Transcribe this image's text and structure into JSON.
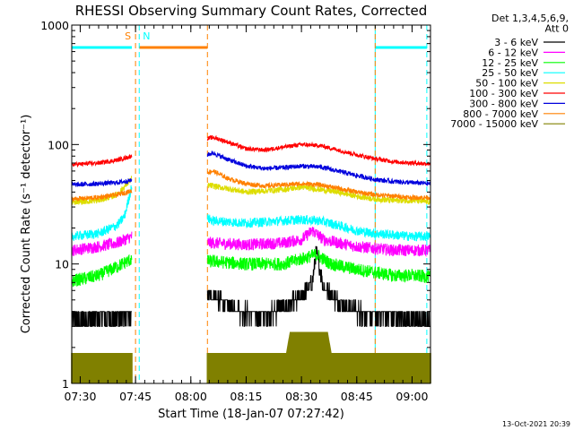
{
  "chart_data": {
    "type": "line",
    "title": "RHESSI Observing Summary Count Rates, Corrected",
    "xlabel": "Start Time (18-Jan-07 07:27:42)",
    "ylabel": "Corrected Count Rate (s⁻¹ detector⁻¹)",
    "y_scale": "log",
    "ylim": [
      1,
      1000
    ],
    "y_ticks": [
      1,
      10,
      100,
      1000
    ],
    "y_tick_labels": [
      "1",
      "10",
      "100",
      "1000"
    ],
    "xlim": [
      "07:27:42",
      "09:05:00"
    ],
    "x_ticks": [
      "07:30",
      "07:45",
      "08:00",
      "08:15",
      "08:30",
      "08:45",
      "09:00"
    ],
    "x_tick_labels": [
      "07:30",
      "07:45",
      "08:00",
      "08:15",
      "08:30",
      "08:45",
      "09:00"
    ],
    "legend": {
      "placement": "right",
      "header": [
        "Det 1,3,4,5,6,9,",
        "Att 0"
      ]
    },
    "data_gap": [
      "07:46:00",
      "08:04:30"
    ],
    "series": [
      {
        "name": "3 - 6 keV",
        "color": "#000000",
        "x": [
          "07:27:42",
          "07:35",
          "07:40",
          "07:44",
          "08:06",
          "08:10",
          "08:15",
          "08:20",
          "08:25",
          "08:30",
          "08:33",
          "08:34",
          "08:36",
          "08:40",
          "08:45",
          "08:50",
          "08:55",
          "09:00",
          "09:05"
        ],
        "y": [
          3.4,
          3.5,
          3.6,
          3.7,
          5.5,
          4.3,
          3.9,
          3.8,
          4.2,
          5.2,
          7.0,
          13.0,
          6.5,
          4.8,
          4.0,
          3.7,
          3.6,
          3.5,
          3.4
        ]
      },
      {
        "name": "6 - 12 keV",
        "color": "#ff00ff",
        "x": [
          "07:27:42",
          "07:35",
          "07:40",
          "07:44",
          "08:06",
          "08:15",
          "08:25",
          "08:30",
          "08:33",
          "08:36",
          "08:40",
          "08:45",
          "08:50",
          "08:55",
          "09:00",
          "09:05"
        ],
        "y": [
          13,
          14,
          15,
          17,
          15,
          14.5,
          15,
          16,
          19,
          16,
          15,
          14,
          13.5,
          13,
          13,
          13
        ]
      },
      {
        "name": "12 - 25 keV",
        "color": "#00ff00",
        "x": [
          "07:27:42",
          "07:35",
          "07:40",
          "07:44",
          "08:06",
          "08:15",
          "08:25",
          "08:30",
          "08:34",
          "08:38",
          "08:45",
          "08:50",
          "08:55",
          "09:00",
          "09:05"
        ],
        "y": [
          7.2,
          8,
          9.5,
          11,
          10.5,
          10,
          10,
          11,
          12,
          10,
          9,
          8.5,
          8,
          8,
          7.8
        ]
      },
      {
        "name": "25 - 50 keV",
        "color": "#00ffff",
        "x": [
          "07:27:42",
          "07:35",
          "07:40",
          "07:42",
          "07:44",
          "08:06",
          "08:15",
          "08:25",
          "08:30",
          "08:35",
          "08:40",
          "08:45",
          "08:50",
          "08:55",
          "09:00",
          "09:05"
        ],
        "y": [
          17,
          18,
          21,
          25,
          45,
          23,
          22,
          23,
          23.5,
          23,
          21,
          19,
          18,
          17.5,
          17,
          17
        ]
      },
      {
        "name": "50 - 100 keV",
        "color": "#dddd00",
        "x": [
          "07:27:42",
          "07:35",
          "07:40",
          "07:44",
          "08:06",
          "08:15",
          "08:25",
          "08:30",
          "08:35",
          "08:40",
          "08:45",
          "08:50",
          "08:55",
          "09:00",
          "09:05"
        ],
        "y": [
          33,
          34,
          38,
          52,
          45,
          40,
          42,
          44,
          42,
          40,
          37,
          35,
          34,
          34,
          33
        ]
      },
      {
        "name": "100 - 300 keV",
        "color": "#ff0000",
        "x": [
          "07:27:42",
          "07:35",
          "07:40",
          "07:44",
          "08:06",
          "08:10",
          "08:15",
          "08:20",
          "08:25",
          "08:30",
          "08:35",
          "08:40",
          "08:45",
          "08:50",
          "08:55",
          "09:00",
          "09:05"
        ],
        "y": [
          68,
          70,
          74,
          80,
          115,
          105,
          92,
          90,
          95,
          100,
          98,
          90,
          82,
          76,
          72,
          70,
          69
        ]
      },
      {
        "name": "300 - 800 keV",
        "color": "#0000dd",
        "x": [
          "07:27:42",
          "07:35",
          "07:40",
          "07:44",
          "08:06",
          "08:10",
          "08:15",
          "08:20",
          "08:25",
          "08:30",
          "08:35",
          "08:40",
          "08:45",
          "08:50",
          "08:55",
          "09:00",
          "09:05"
        ],
        "y": [
          46,
          47,
          48,
          50,
          85,
          75,
          66,
          63,
          64,
          66,
          65,
          60,
          55,
          51,
          49,
          48,
          47
        ]
      },
      {
        "name": "800 - 7000 keV",
        "color": "#ff8000",
        "x": [
          "07:27:42",
          "07:35",
          "07:40",
          "07:44",
          "08:06",
          "08:10",
          "08:15",
          "08:20",
          "08:25",
          "08:30",
          "08:35",
          "08:40",
          "08:45",
          "08:50",
          "08:55",
          "09:00",
          "09:05"
        ],
        "y": [
          35,
          36,
          38,
          41,
          60,
          52,
          47,
          45,
          46,
          47,
          46,
          43,
          40,
          38,
          37,
          36,
          36
        ]
      },
      {
        "name": "7000 - 15000 keV",
        "color": "#808000",
        "x": [
          "07:27:42",
          "07:44",
          "08:06",
          "08:26",
          "08:27",
          "08:37",
          "08:38",
          "09:05"
        ],
        "y": [
          1.8,
          1.8,
          1.8,
          1.8,
          2.7,
          2.7,
          1.8,
          1.8
        ]
      }
    ],
    "annotations": [
      {
        "label": "S",
        "color": "#ff8000",
        "x": "07:45:00"
      },
      {
        "label": "N",
        "color": "#00ffff",
        "x": "07:46:00"
      }
    ],
    "markers": [
      {
        "kind": "orange-bar",
        "color": "#ff8000",
        "from": "07:46:00",
        "to": "08:04:30",
        "y": 650
      },
      {
        "kind": "cyan-bar",
        "color": "#00ffff",
        "from": "07:27:42",
        "to": "07:44:00",
        "y": 650
      },
      {
        "kind": "cyan-bar",
        "color": "#00ffff",
        "from": "08:50:00",
        "to": "09:04:00",
        "y": 650
      },
      {
        "kind": "vline-solid",
        "color": "#00ffff",
        "x": "07:27:42"
      },
      {
        "kind": "vline-dashed",
        "color": "#00ffff",
        "x": "07:46:00"
      },
      {
        "kind": "vline-dashed",
        "color": "#ff8000",
        "x": "07:45:00"
      },
      {
        "kind": "vline-dashed",
        "color": "#ff8000",
        "x": "08:04:30"
      },
      {
        "kind": "vline-solid",
        "color": "#00ffff",
        "x": "08:50:00"
      },
      {
        "kind": "vline-dashed",
        "color": "#ff8000",
        "x": "08:50:00"
      },
      {
        "kind": "vline-dashed",
        "color": "#00ffff",
        "x": "09:04:00"
      }
    ]
  },
  "footer": {
    "date_stamp": "13-Oct-2021 20:39"
  }
}
